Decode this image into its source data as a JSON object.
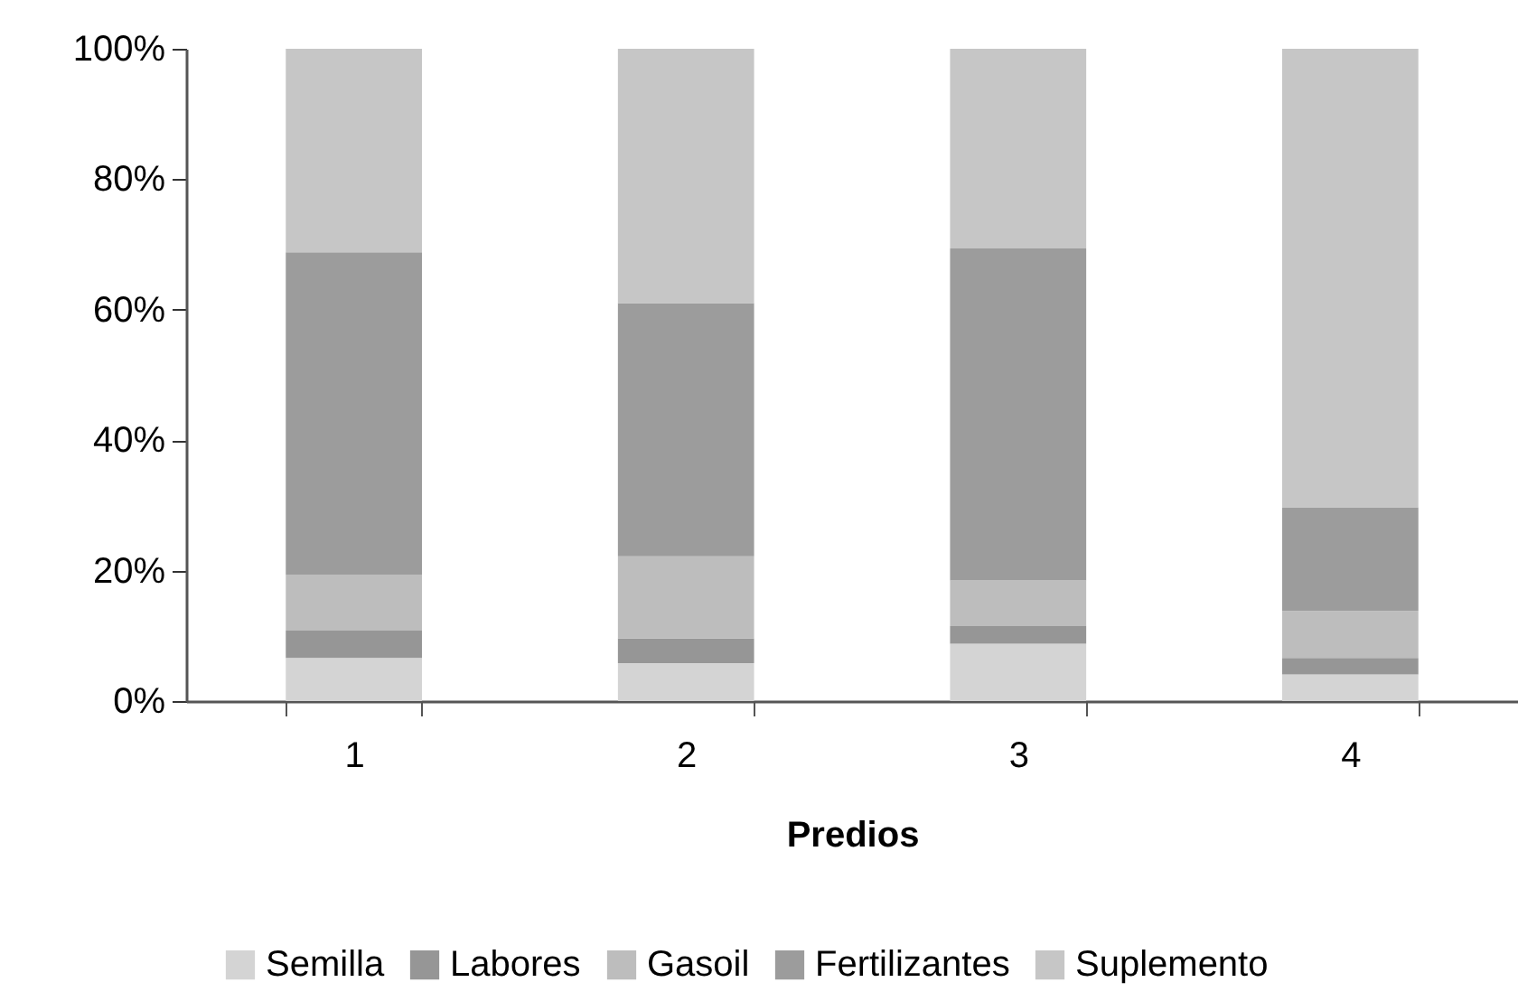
{
  "chart_data": {
    "type": "bar",
    "stacked": true,
    "xlabel": "Predios",
    "categories": [
      "1",
      "2",
      "3",
      "4"
    ],
    "series": [
      {
        "name": "Semilla",
        "color": "#d4d4d4",
        "values": [
          6.6,
          5.8,
          8.8,
          4.1
        ]
      },
      {
        "name": "Labores",
        "color": "#969696",
        "values": [
          4.2,
          3.8,
          2.7,
          2.5
        ]
      },
      {
        "name": "Gasoil",
        "color": "#bdbdbd",
        "values": [
          8.6,
          12.6,
          7.0,
          7.2
        ]
      },
      {
        "name": "Fertilizantes",
        "color": "#9c9c9c",
        "values": [
          49.4,
          38.8,
          50.9,
          15.9
        ]
      },
      {
        "name": "Suplemento",
        "color": "#c6c6c6",
        "values": [
          31.2,
          39.0,
          30.6,
          70.3
        ]
      }
    ],
    "ylim": [
      0,
      100
    ],
    "yticks": [
      {
        "value": 0,
        "label": "0%"
      },
      {
        "value": 20,
        "label": "20%"
      },
      {
        "value": 40,
        "label": "40%"
      },
      {
        "value": 60,
        "label": "60%"
      },
      {
        "value": 80,
        "label": "80%"
      },
      {
        "value": 100,
        "label": "100%"
      }
    ],
    "legend": "bottom"
  }
}
